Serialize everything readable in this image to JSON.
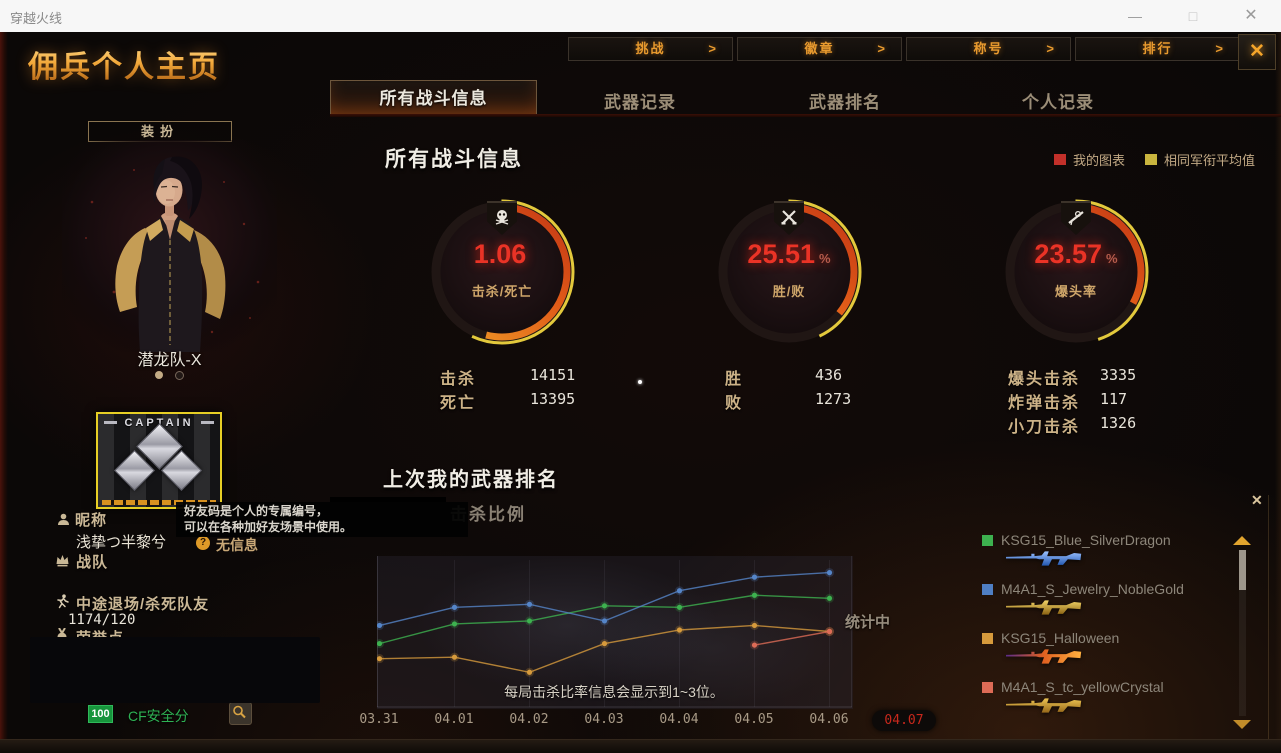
{
  "window": {
    "title": "穿越火线",
    "controls": {
      "minimize": "—",
      "maximize": "□",
      "close": "✕"
    }
  },
  "page": {
    "title": "佣兵个人主页"
  },
  "nav": {
    "arrow": ">",
    "close_glyph": "✕",
    "buttons": [
      {
        "key": "challenge",
        "label": "挑战"
      },
      {
        "key": "badge",
        "label": "徽章"
      },
      {
        "key": "title",
        "label": "称号"
      },
      {
        "key": "ranking",
        "label": "排行"
      }
    ]
  },
  "tabs": [
    {
      "key": "all-combat-info",
      "label": "所有战斗信息",
      "active": true
    },
    {
      "key": "weapon-records",
      "label": "武器记录",
      "active": false
    },
    {
      "key": "weapon-ranking",
      "label": "武器排名",
      "active": false
    },
    {
      "key": "personal-records",
      "label": "个人记录",
      "active": false
    }
  ],
  "profile": {
    "dress_button": "装扮",
    "character_name": "潜龙队-X",
    "rank_badge_title": "CAPTAIN",
    "nickname_label": "昵称",
    "nickname_value": "浅挚つ半黎兮",
    "clan_label": "战队",
    "tooltip_line1": "好友码是个人的专属编号，",
    "tooltip_line2": "可以在各种加好友场景中使用。",
    "no_info_icon": "?",
    "no_info": "无信息",
    "quit_label": "中途退场/杀死队友",
    "quit_value": "1174/120",
    "honor_label": "荣誉点",
    "security_score": "100",
    "security_label": "CF安全分"
  },
  "main": {
    "section_title": "所有战斗信息",
    "legend": [
      {
        "label": "我的图表",
        "color": "#c2302a"
      },
      {
        "label": "相同军衔平均值",
        "color": "#c9b53e"
      }
    ],
    "gauges": [
      {
        "icon": "skull-icon",
        "value": "1.06",
        "unit": "",
        "label": "击杀/死亡",
        "my_arc": 54,
        "avg_arc": 57
      },
      {
        "icon": "crossed-guns-icon",
        "value": "25.51",
        "unit": "%",
        "label": "胜/败",
        "my_arc": 36,
        "avg_arc": 43
      },
      {
        "icon": "sniper-icon",
        "value": "23.57",
        "unit": "%",
        "label": "爆头率",
        "my_arc": 33,
        "avg_arc": 45
      }
    ],
    "stats_cols": [
      {
        "rows": [
          {
            "label": "击杀",
            "value": "14151"
          },
          {
            "label": "死亡",
            "value": "13395"
          }
        ]
      },
      {
        "rows": [
          {
            "label": "胜",
            "value": "436"
          },
          {
            "label": "败",
            "value": "1273"
          }
        ]
      },
      {
        "rows": [
          {
            "label": "爆头击杀",
            "value": "3335"
          },
          {
            "label": "炸弹击杀",
            "value": "117"
          },
          {
            "label": "小刀击杀",
            "value": "1326"
          }
        ]
      }
    ],
    "weapon_section_title": "上次我的武器排名",
    "subtab": "击杀比例",
    "stats_pending": "统计中",
    "chart_note": "每局击杀比率信息会显示到1~3位。"
  },
  "chart_data": {
    "type": "line",
    "title": "上次我的武器排名 — 击杀比例",
    "x_labels": [
      "03.31",
      "04.01",
      "04.02",
      "04.03",
      "04.04",
      "04.05",
      "04.06",
      "04.07"
    ],
    "highlighted_x": "04.07",
    "ylabel": "",
    "y_axis_note": "unlabeled axis; values are estimated relative kill-ratio heights (0-100 of plot)",
    "grid": "faint vertical gridlines per date",
    "legend_position": "right panel weapon list",
    "series": [
      {
        "name": "KSG15_Blue_SilverDragon",
        "color": "#3db14f",
        "values": [
          42,
          55,
          57,
          67,
          66,
          74,
          72,
          null
        ]
      },
      {
        "name": "M4A1_S_Jewelry_NobleGold",
        "color": "#5585c8",
        "values": [
          54,
          66,
          68,
          57,
          77,
          86,
          89,
          null
        ]
      },
      {
        "name": "KSG15_Halloween",
        "color": "#d69a3c",
        "values": [
          32,
          33,
          23,
          42,
          51,
          54,
          50,
          null
        ]
      },
      {
        "name": "M4A1_S_tc_yellowCrystal",
        "color": "#dd6b56",
        "values": [
          null,
          null,
          null,
          null,
          null,
          41,
          50,
          null
        ]
      }
    ],
    "annotations": [
      "统计中",
      "每局击杀比率信息会显示到1~3位。"
    ]
  },
  "weapons": [
    {
      "name": "KSG15_Blue_SilverDragon",
      "color": "#3db14f",
      "skin": "blue"
    },
    {
      "name": "M4A1_S_Jewelry_NobleGold",
      "color": "#4f7fc4",
      "skin": "gold"
    },
    {
      "name": "KSG15_Halloween",
      "color": "#d69a3c",
      "skin": "halloween"
    },
    {
      "name": "M4A1_S_tc_yellowCrystal",
      "color": "#dd6b56",
      "skin": "gold2"
    }
  ]
}
